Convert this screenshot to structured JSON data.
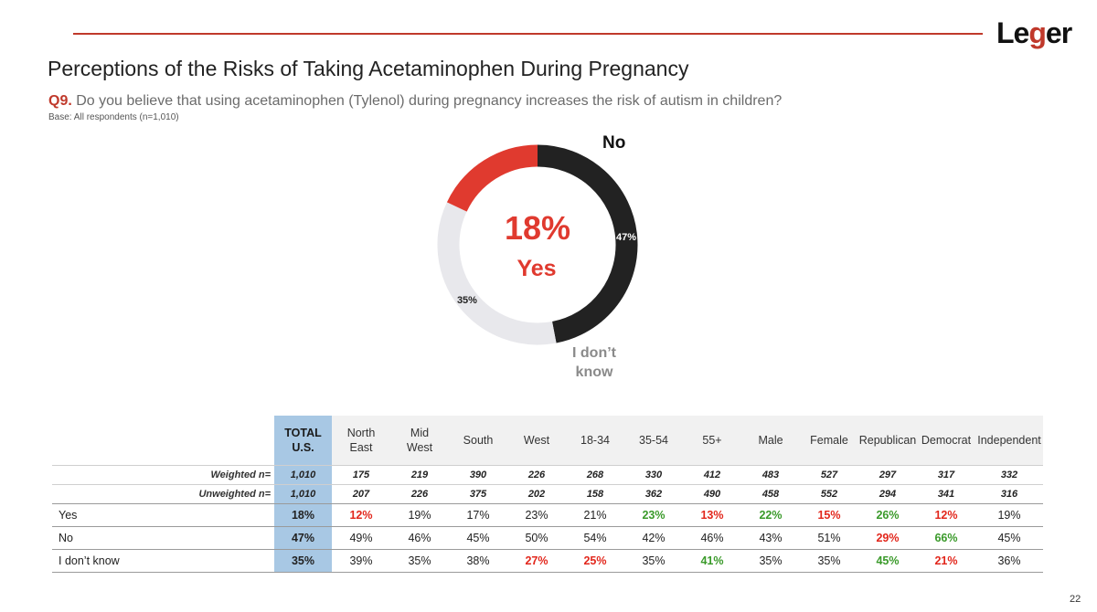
{
  "logo": {
    "pre": "Le",
    "mid": "g",
    "post": "er"
  },
  "title": "Perceptions of the Risks of Taking Acetaminophen During Pregnancy",
  "question": {
    "number": "Q9.",
    "text": "Do you believe that using acetaminophen (Tylenol) during pregnancy increases the risk of autism in children?"
  },
  "base": "Base: All respondents (n=1,010)",
  "colors": {
    "accent": "#c0392b",
    "yes": "#e03a2f",
    "no": "#222222",
    "idk": "#e8e8ec",
    "total_col": "#a8c8e4",
    "high": "#3a9a2a",
    "low": "#e2271c"
  },
  "chart_data": {
    "type": "pie",
    "title": "Do you believe that using acetaminophen (Tylenol) during pregnancy increases the risk of autism in children?",
    "categories": [
      "Yes",
      "No",
      "I don't know"
    ],
    "values": [
      18,
      47,
      35
    ],
    "data_labels": [
      "18%",
      "47%",
      "35%"
    ],
    "legend": [
      "Yes",
      "No",
      "I don’t know"
    ],
    "center_value": "18%",
    "center_label": "Yes"
  },
  "labels": {
    "no": "No",
    "idk_line1": "I don’t",
    "idk_line2": "know"
  },
  "table": {
    "headers": [
      [
        "TOTAL",
        "U.S."
      ],
      [
        "North",
        "East"
      ],
      [
        "Mid",
        "West"
      ],
      [
        "South"
      ],
      [
        "West"
      ],
      [
        "18-34"
      ],
      [
        "35-54"
      ],
      [
        "55+"
      ],
      [
        "Male"
      ],
      [
        "Female"
      ],
      [
        "Republican"
      ],
      [
        "Democrat"
      ],
      [
        "Independent"
      ]
    ],
    "rows": [
      {
        "label": "Weighted n=",
        "small": true,
        "values": [
          "1,010",
          "175",
          "219",
          "390",
          "226",
          "268",
          "330",
          "412",
          "483",
          "527",
          "297",
          "317",
          "332"
        ],
        "colors": [
          "",
          "",
          "",
          "",
          "",
          "",
          "",
          "",
          "",
          "",
          "",
          "",
          ""
        ]
      },
      {
        "label": "Unweighted n=",
        "small": true,
        "values": [
          "1,010",
          "207",
          "226",
          "375",
          "202",
          "158",
          "362",
          "490",
          "458",
          "552",
          "294",
          "341",
          "316"
        ],
        "colors": [
          "",
          "",
          "",
          "",
          "",
          "",
          "",
          "",
          "",
          "",
          "",
          "",
          ""
        ]
      },
      {
        "label": "Yes",
        "small": false,
        "values": [
          "18%",
          "12%",
          "19%",
          "17%",
          "23%",
          "21%",
          "23%",
          "13%",
          "22%",
          "15%",
          "26%",
          "12%",
          "19%"
        ],
        "colors": [
          "",
          "red",
          "",
          "",
          "",
          "",
          "green",
          "red",
          "green",
          "red",
          "green",
          "red",
          ""
        ]
      },
      {
        "label": "No",
        "small": false,
        "values": [
          "47%",
          "49%",
          "46%",
          "45%",
          "50%",
          "54%",
          "42%",
          "46%",
          "43%",
          "51%",
          "29%",
          "66%",
          "45%"
        ],
        "colors": [
          "",
          "",
          "",
          "",
          "",
          "",
          "",
          "",
          "",
          "",
          "red",
          "green",
          ""
        ]
      },
      {
        "label": "I don’t know",
        "small": false,
        "values": [
          "35%",
          "39%",
          "35%",
          "38%",
          "27%",
          "25%",
          "35%",
          "41%",
          "35%",
          "35%",
          "45%",
          "21%",
          "36%"
        ],
        "colors": [
          "",
          "",
          "",
          "",
          "red",
          "red",
          "",
          "green",
          "",
          "",
          "green",
          "red",
          ""
        ]
      }
    ]
  },
  "page_number": "22"
}
